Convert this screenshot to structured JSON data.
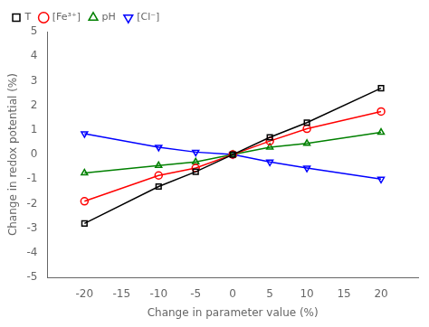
{
  "chart_data": {
    "type": "line",
    "x": [
      -20,
      -10,
      -5,
      0,
      5,
      10,
      20
    ],
    "series": [
      {
        "name": "T",
        "color": "#000000",
        "marker": "square",
        "values": [
          -2.8,
          -1.3,
          -0.7,
          0.0,
          0.7,
          1.3,
          2.7
        ]
      },
      {
        "name": "[Fe³⁺]",
        "color": "#ff0000",
        "marker": "circle",
        "values": [
          -1.9,
          -0.85,
          -0.55,
          0.0,
          0.55,
          1.05,
          1.75
        ]
      },
      {
        "name": "pH",
        "color": "#008000",
        "marker": "triangle-up",
        "values": [
          -0.75,
          -0.45,
          -0.3,
          0.0,
          0.3,
          0.45,
          0.9
        ]
      },
      {
        "name": "[Cl⁻]",
        "color": "#0000ff",
        "marker": "triangle-down",
        "values": [
          0.85,
          0.3,
          0.1,
          0.0,
          -0.3,
          -0.55,
          -1.0
        ]
      }
    ],
    "xlabel": "Change in parameter value (%)",
    "ylabel": "Change in redox potential (%)",
    "xlim": [
      -25,
      25
    ],
    "ylim": [
      -5,
      5
    ],
    "xticks": [
      -20,
      -15,
      -10,
      -5,
      0,
      5,
      10,
      15,
      20
    ],
    "yticks": [
      -5,
      -4,
      -3,
      -2,
      -1,
      0,
      1,
      2,
      3,
      4,
      5
    ],
    "grid": false,
    "legend": "upper left"
  }
}
